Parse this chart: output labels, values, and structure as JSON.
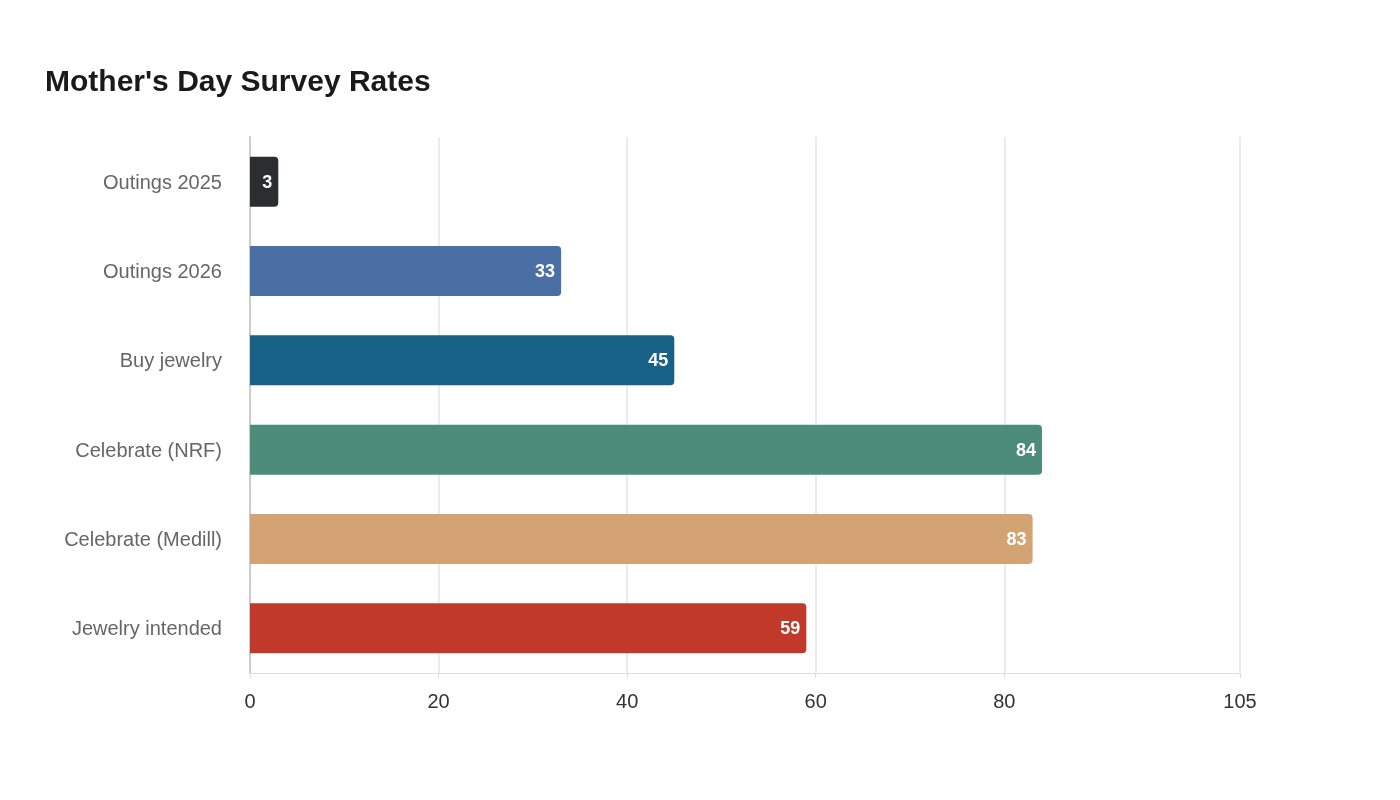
{
  "chart_data": {
    "type": "bar",
    "orientation": "horizontal",
    "title": "Mother's Day Survey Rates",
    "categories": [
      "Outings 2025",
      "Outings 2026",
      "Buy jewelry",
      "Celebrate (NRF)",
      "Celebrate (Medill)",
      "Jewelry intended"
    ],
    "values": [
      3,
      33,
      45,
      84,
      83,
      59
    ],
    "colors": [
      "#2b2d2f",
      "#4a6fa5",
      "#186187",
      "#4e8c7a",
      "#d3a373",
      "#c0392b"
    ],
    "xlim": [
      0,
      105
    ],
    "xticks": [
      0,
      20,
      40,
      60,
      80,
      105
    ],
    "grid": "x",
    "data_labels": true
  }
}
